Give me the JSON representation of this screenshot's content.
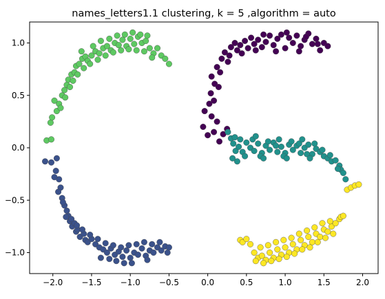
{
  "chart_data": {
    "type": "scatter",
    "title": "names_letters1.1 clustering, k = 5 ,algorithm = auto",
    "xlabel": "",
    "ylabel": "",
    "xlim": [
      -2.3,
      2.2
    ],
    "ylim": [
      -1.2,
      1.2
    ],
    "xticks": [
      -2.0,
      -1.5,
      -1.0,
      -0.5,
      0.0,
      0.5,
      1.0,
      1.5,
      2.0
    ],
    "xtick_labels": [
      "−2.0",
      "−1.5",
      "−1.0",
      "−0.5",
      "0.0",
      "0.5",
      "1.0",
      "1.5",
      "2.0"
    ],
    "yticks": [
      -1.0,
      -0.5,
      0.0,
      0.5,
      1.0
    ],
    "ytick_labels": [
      "−1.0",
      "−0.5",
      "0.0",
      "0.5",
      "1.0"
    ],
    "grid": false,
    "legend": "none",
    "series": [
      {
        "cluster": 0,
        "color": "#440154",
        "points": [
          [
            -0.06,
            0.2
          ],
          [
            -0.04,
            0.35
          ],
          [
            0.02,
            0.42
          ],
          [
            0.04,
            0.52
          ],
          [
            0.05,
            0.68
          ],
          [
            0.09,
            0.61
          ],
          [
            0.12,
            0.77
          ],
          [
            0.16,
            0.72
          ],
          [
            0.18,
            0.85
          ],
          [
            0.22,
            0.91
          ],
          [
            0.26,
            0.82
          ],
          [
            0.3,
            0.96
          ],
          [
            0.35,
            1.0
          ],
          [
            0.38,
            0.93
          ],
          [
            0.42,
            0.98
          ],
          [
            0.48,
            1.02
          ],
          [
            0.52,
            0.95
          ],
          [
            0.56,
            1.05
          ],
          [
            0.6,
            0.99
          ],
          [
            0.65,
            1.03
          ],
          [
            0.7,
            0.96
          ],
          [
            0.75,
            1.01
          ],
          [
            0.8,
            1.07
          ],
          [
            0.85,
            0.98
          ],
          [
            0.9,
            1.04
          ],
          [
            0.95,
            1.08
          ],
          [
            1.0,
            0.95
          ],
          [
            1.05,
            1.05
          ],
          [
            1.1,
            1.0
          ],
          [
            1.15,
            1.07
          ],
          [
            1.2,
            0.97
          ],
          [
            1.25,
            1.03
          ],
          [
            1.3,
            1.09
          ],
          [
            1.35,
            0.99
          ],
          [
            1.4,
            1.04
          ],
          [
            1.45,
            0.93
          ],
          [
            1.5,
            1.0
          ],
          [
            1.55,
            0.97
          ],
          [
            0.0,
            0.12
          ],
          [
            0.05,
            0.3
          ],
          [
            0.08,
            0.15
          ],
          [
            0.12,
            0.25
          ],
          [
            0.15,
            0.06
          ],
          [
            0.2,
            0.13
          ],
          [
            0.25,
            0.18
          ],
          [
            0.08,
            0.45
          ],
          [
            0.14,
            0.58
          ],
          [
            0.28,
            0.88
          ],
          [
            0.44,
            0.9
          ],
          [
            0.62,
            0.93
          ],
          [
            0.88,
            0.92
          ],
          [
            1.18,
            0.92
          ],
          [
            1.42,
            0.99
          ],
          [
            0.72,
            1.08
          ],
          [
            1.02,
            1.1
          ],
          [
            1.27,
            1.06
          ]
        ]
      },
      {
        "cluster": 1,
        "color": "#3b528b",
        "points": [
          [
            -2.1,
            -0.13
          ],
          [
            -2.02,
            -0.14
          ],
          [
            -1.95,
            -0.1
          ],
          [
            -1.96,
            -0.22
          ],
          [
            -1.92,
            -0.3
          ],
          [
            -1.9,
            -0.38
          ],
          [
            -1.88,
            -0.48
          ],
          [
            -1.85,
            -0.55
          ],
          [
            -1.82,
            -0.6
          ],
          [
            -1.8,
            -0.65
          ],
          [
            -1.78,
            -0.7
          ],
          [
            -1.75,
            -0.75
          ],
          [
            -1.72,
            -0.72
          ],
          [
            -1.7,
            -0.8
          ],
          [
            -1.68,
            -0.78
          ],
          [
            -1.65,
            -0.85
          ],
          [
            -1.6,
            -0.82
          ],
          [
            -1.58,
            -0.88
          ],
          [
            -1.55,
            -0.9
          ],
          [
            -1.5,
            -0.87
          ],
          [
            -1.45,
            -0.92
          ],
          [
            -1.4,
            -0.95
          ],
          [
            -1.35,
            -0.97
          ],
          [
            -1.3,
            -1.0
          ],
          [
            -1.25,
            -0.96
          ],
          [
            -1.2,
            -1.02
          ],
          [
            -1.15,
            -0.99
          ],
          [
            -1.1,
            -1.04
          ],
          [
            -1.05,
            -0.98
          ],
          [
            -1.0,
            -1.05
          ],
          [
            -0.95,
            -1.0
          ],
          [
            -0.9,
            -1.02
          ],
          [
            -0.85,
            -0.96
          ],
          [
            -0.8,
            -1.03
          ],
          [
            -0.75,
            -0.98
          ],
          [
            -0.7,
            -1.0
          ],
          [
            -0.65,
            -0.95
          ],
          [
            -0.6,
            -0.98
          ],
          [
            -0.55,
            -0.94
          ],
          [
            -0.52,
            -1.0
          ],
          [
            -0.5,
            -0.95
          ],
          [
            -1.98,
            -0.28
          ],
          [
            -1.93,
            -0.42
          ],
          [
            -1.87,
            -0.52
          ],
          [
            -1.83,
            -0.66
          ],
          [
            -1.76,
            -0.68
          ],
          [
            -1.69,
            -0.74
          ],
          [
            -1.62,
            -0.78
          ],
          [
            -1.52,
            -0.83
          ],
          [
            -1.42,
            -0.87
          ],
          [
            -1.32,
            -0.91
          ],
          [
            -1.22,
            -0.93
          ],
          [
            -1.12,
            -0.95
          ],
          [
            -1.02,
            -0.93
          ],
          [
            -0.92,
            -0.92
          ],
          [
            -0.82,
            -0.9
          ],
          [
            -0.72,
            -0.92
          ],
          [
            -0.62,
            -0.9
          ],
          [
            -1.38,
            -1.05
          ],
          [
            -1.18,
            -1.08
          ],
          [
            -0.98,
            -1.1
          ],
          [
            -0.78,
            -1.07
          ],
          [
            -1.27,
            -1.06
          ],
          [
            -1.08,
            -1.1
          ]
        ]
      },
      {
        "cluster": 2,
        "color": "#21918c",
        "points": [
          [
            0.26,
            0.15
          ],
          [
            0.3,
            0.09
          ],
          [
            0.33,
            0.04
          ],
          [
            0.36,
            -0.03
          ],
          [
            0.4,
            0.01
          ],
          [
            0.45,
            -0.04
          ],
          [
            0.5,
            0.05
          ],
          [
            0.55,
            0.0
          ],
          [
            0.6,
            -0.03
          ],
          [
            0.65,
            0.04
          ],
          [
            0.7,
            -0.05
          ],
          [
            0.75,
            0.02
          ],
          [
            0.8,
            -0.02
          ],
          [
            0.85,
            0.05
          ],
          [
            0.9,
            -0.04
          ],
          [
            0.95,
            0.01
          ],
          [
            1.0,
            -0.05
          ],
          [
            1.05,
            0.03
          ],
          [
            1.1,
            -0.02
          ],
          [
            1.15,
            0.02
          ],
          [
            1.2,
            -0.05
          ],
          [
            1.25,
            0.0
          ],
          [
            1.3,
            0.03
          ],
          [
            1.35,
            -0.06
          ],
          [
            1.4,
            -0.01
          ],
          [
            1.45,
            -0.04
          ],
          [
            1.5,
            -0.08
          ],
          [
            1.55,
            -0.1
          ],
          [
            1.6,
            -0.13
          ],
          [
            1.65,
            -0.12
          ],
          [
            1.7,
            -0.17
          ],
          [
            1.72,
            -0.21
          ],
          [
            1.75,
            -0.24
          ],
          [
            1.78,
            -0.3
          ],
          [
            0.35,
            0.1
          ],
          [
            0.42,
            0.08
          ],
          [
            0.48,
            -0.08
          ],
          [
            0.38,
            -0.13
          ],
          [
            0.32,
            -0.1
          ],
          [
            0.58,
            0.08
          ],
          [
            0.68,
            -0.08
          ],
          [
            0.78,
            0.06
          ],
          [
            0.88,
            0.02
          ],
          [
            0.98,
            -0.08
          ],
          [
            1.08,
            0.06
          ],
          [
            1.18,
            0.04
          ],
          [
            1.28,
            -0.06
          ],
          [
            1.38,
            0.04
          ],
          [
            1.48,
            -0.02
          ],
          [
            1.58,
            -0.07
          ],
          [
            1.68,
            -0.2
          ],
          [
            0.62,
            0.11
          ],
          [
            0.92,
            0.08
          ],
          [
            1.22,
            0.08
          ],
          [
            0.72,
            -0.1
          ],
          [
            1.02,
            -0.1
          ],
          [
            1.32,
            -0.1
          ]
        ]
      },
      {
        "cluster": 3,
        "color": "#5ec962",
        "points": [
          [
            -2.08,
            0.07
          ],
          [
            -2.02,
            0.08
          ],
          [
            -2.03,
            0.24
          ],
          [
            -2.01,
            0.29
          ],
          [
            -1.95,
            0.35
          ],
          [
            -1.92,
            0.42
          ],
          [
            -1.88,
            0.5
          ],
          [
            -1.85,
            0.55
          ],
          [
            -1.82,
            0.6
          ],
          [
            -1.8,
            0.65
          ],
          [
            -1.76,
            0.7
          ],
          [
            -1.72,
            0.72
          ],
          [
            -1.7,
            0.78
          ],
          [
            -1.66,
            0.8
          ],
          [
            -1.62,
            0.85
          ],
          [
            -1.58,
            0.87
          ],
          [
            -1.55,
            0.83
          ],
          [
            -1.5,
            0.88
          ],
          [
            -1.45,
            0.92
          ],
          [
            -1.4,
            0.9
          ],
          [
            -1.35,
            0.95
          ],
          [
            -1.3,
            0.97
          ],
          [
            -1.25,
            0.93
          ],
          [
            -1.2,
            1.0
          ],
          [
            -1.15,
            0.98
          ],
          [
            -1.1,
            1.03
          ],
          [
            -1.05,
            0.97
          ],
          [
            -1.0,
            1.04
          ],
          [
            -0.95,
            0.99
          ],
          [
            -0.9,
            1.06
          ],
          [
            -0.85,
            1.0
          ],
          [
            -0.8,
            1.02
          ],
          [
            -0.75,
            0.95
          ],
          [
            -0.7,
            0.9
          ],
          [
            -0.65,
            0.95
          ],
          [
            -0.6,
            0.88
          ],
          [
            -0.55,
            0.85
          ],
          [
            -0.5,
            0.8
          ],
          [
            -1.98,
            0.45
          ],
          [
            -1.9,
            0.38
          ],
          [
            -1.84,
            0.48
          ],
          [
            -1.78,
            0.58
          ],
          [
            -1.74,
            0.64
          ],
          [
            -1.68,
            0.7
          ],
          [
            -1.6,
            0.76
          ],
          [
            -1.52,
            0.8
          ],
          [
            -1.42,
            0.84
          ],
          [
            -1.32,
            0.88
          ],
          [
            -1.22,
            0.91
          ],
          [
            -1.12,
            0.93
          ],
          [
            -1.02,
            0.94
          ],
          [
            -0.92,
            0.93
          ],
          [
            -0.82,
            0.92
          ],
          [
            -0.72,
            0.86
          ],
          [
            -1.63,
            0.92
          ],
          [
            -1.48,
            0.97
          ],
          [
            -1.38,
            1.02
          ],
          [
            -1.27,
            1.04
          ],
          [
            -1.17,
            1.07
          ],
          [
            -1.07,
            1.08
          ],
          [
            -0.97,
            1.1
          ],
          [
            -0.87,
            1.08
          ],
          [
            -0.78,
            1.07
          ]
        ]
      },
      {
        "cluster": 4,
        "color": "#fde725",
        "points": [
          [
            0.42,
            -0.88
          ],
          [
            0.45,
            -0.9
          ],
          [
            0.5,
            -0.87
          ],
          [
            0.55,
            -0.92
          ],
          [
            0.6,
            -1.0
          ],
          [
            0.65,
            -1.05
          ],
          [
            0.7,
            -1.03
          ],
          [
            0.75,
            -1.07
          ],
          [
            0.8,
            -1.0
          ],
          [
            0.85,
            -1.05
          ],
          [
            0.9,
            -0.97
          ],
          [
            0.95,
            -1.02
          ],
          [
            1.0,
            -0.95
          ],
          [
            1.05,
            -1.0
          ],
          [
            1.1,
            -0.92
          ],
          [
            1.15,
            -0.97
          ],
          [
            1.2,
            -0.88
          ],
          [
            1.25,
            -0.93
          ],
          [
            1.3,
            -0.85
          ],
          [
            1.35,
            -0.9
          ],
          [
            1.4,
            -0.82
          ],
          [
            1.45,
            -0.85
          ],
          [
            1.5,
            -0.78
          ],
          [
            1.55,
            -0.8
          ],
          [
            1.6,
            -0.75
          ],
          [
            1.65,
            -0.72
          ],
          [
            1.7,
            -0.68
          ],
          [
            1.72,
            -0.66
          ],
          [
            1.75,
            -0.65
          ],
          [
            1.8,
            -0.4
          ],
          [
            1.85,
            -0.38
          ],
          [
            1.9,
            -0.36
          ],
          [
            1.95,
            -0.35
          ],
          [
            0.62,
            -1.08
          ],
          [
            0.72,
            -1.1
          ],
          [
            0.82,
            -1.08
          ],
          [
            0.92,
            -1.06
          ],
          [
            1.02,
            -1.04
          ],
          [
            1.12,
            -1.01
          ],
          [
            1.22,
            -0.97
          ],
          [
            1.32,
            -0.95
          ],
          [
            1.42,
            -0.9
          ],
          [
            1.52,
            -0.86
          ],
          [
            1.62,
            -0.82
          ],
          [
            0.68,
            -0.95
          ],
          [
            0.78,
            -0.93
          ],
          [
            0.88,
            -0.9
          ],
          [
            0.98,
            -0.88
          ],
          [
            1.08,
            -0.86
          ],
          [
            1.18,
            -0.82
          ],
          [
            1.28,
            -0.79
          ],
          [
            1.38,
            -0.76
          ],
          [
            1.48,
            -0.72
          ],
          [
            1.58,
            -0.7
          ]
        ]
      }
    ]
  }
}
